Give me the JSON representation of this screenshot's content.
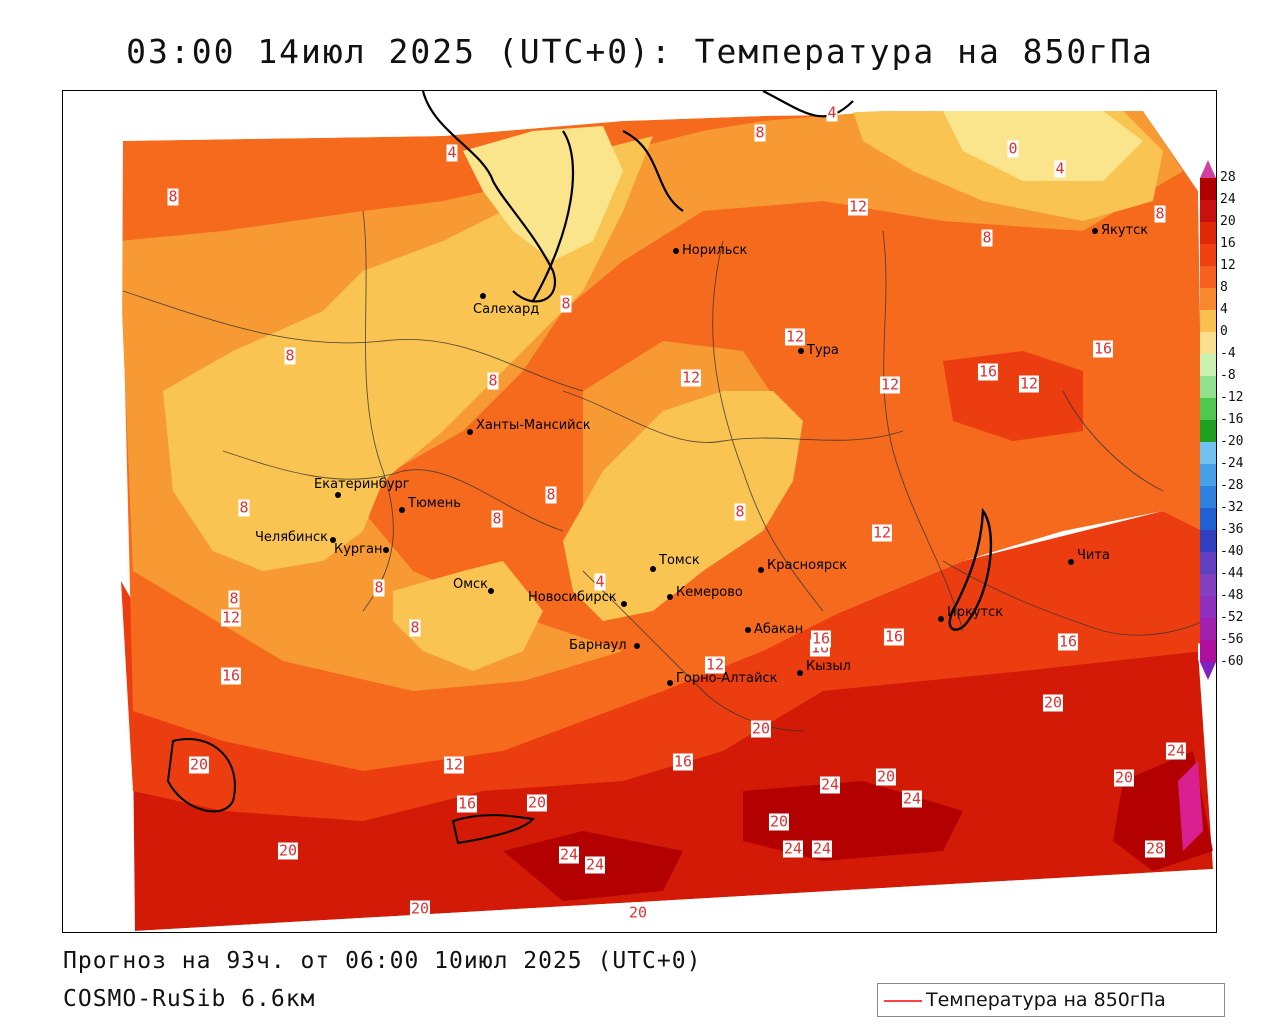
{
  "title": "03:00 14июл 2025 (UTC+0): Температура на 850гПа",
  "footer": {
    "forecast": "Прогноз на 93ч. от 06:00 10июл 2025 (UTC+0)",
    "model": "COSMO-RuSib 6.6км"
  },
  "legend": {
    "label": "Температура на 850гПа",
    "line_color": "#ff4040"
  },
  "scale": {
    "ticks": [
      "28",
      "24",
      "20",
      "16",
      "12",
      "8",
      "4",
      "0",
      "-4",
      "-8",
      "-12",
      "-16",
      "-20",
      "-24",
      "-28",
      "-32",
      "-36",
      "-40",
      "-44",
      "-48",
      "-52",
      "-56",
      "-60"
    ],
    "colors": [
      "#b00000",
      "#c81010",
      "#e02808",
      "#f04010",
      "#f86020",
      "#f88830",
      "#f8c050",
      "#f8e090",
      "#c8f0b0",
      "#90e090",
      "#50c850",
      "#20a020",
      "#70c0f0",
      "#4aa0e8",
      "#3080e0",
      "#2060d0",
      "#3040c0",
      "#6040c0",
      "#8040c0",
      "#9030c0",
      "#a020b0",
      "#b010a0"
    ],
    "top_color": "#d040a0",
    "bottom_color": "#8020c0"
  },
  "zone_colors": {
    "t0_4": "#fbe58c",
    "t4_8": "#f9c451",
    "t8_12": "#f89a34",
    "t12_16": "#f56a1c",
    "t16_20": "#ec3d10",
    "t20_24": "#d21a06",
    "t24_28": "#b30000",
    "t28": "#d82090"
  },
  "cities": [
    {
      "name": "Норильск"
    },
    {
      "name": "Якутск"
    },
    {
      "name": "Салехард"
    },
    {
      "name": "Тура"
    },
    {
      "name": "Ханты-Мансийск"
    },
    {
      "name": "Екатеринбург"
    },
    {
      "name": "Тюмень"
    },
    {
      "name": "Челябинск"
    },
    {
      "name": "Курган"
    },
    {
      "name": "Омск"
    },
    {
      "name": "Новосибирск"
    },
    {
      "name": "Томск"
    },
    {
      "name": "Кемерово"
    },
    {
      "name": "Красноярск"
    },
    {
      "name": "Барнаул"
    },
    {
      "name": "Абакан"
    },
    {
      "name": "Горно-Алтайск"
    },
    {
      "name": "Кызыл"
    },
    {
      "name": "Иркутск"
    },
    {
      "name": "Чита"
    }
  ],
  "contour_labels": [
    "4",
    "8",
    "4",
    "0",
    "4",
    "12",
    "8",
    "8",
    "8",
    "8",
    "12",
    "16",
    "16",
    "12",
    "12",
    "12",
    "8",
    "8",
    "8",
    "8",
    "8",
    "4",
    "8",
    "8",
    "12",
    "16",
    "16",
    "16",
    "16",
    "12",
    "12",
    "16",
    "20",
    "20",
    "12",
    "16",
    "20",
    "20",
    "24",
    "20",
    "24",
    "20",
    "24",
    "24",
    "20",
    "24",
    "24",
    "20",
    "20",
    "28",
    "16",
    "8",
    "8",
    "12",
    "20",
    "24"
  ]
}
